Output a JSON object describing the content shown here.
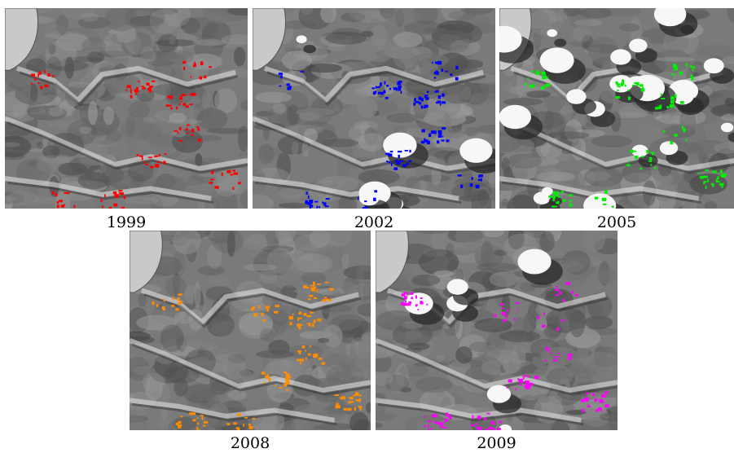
{
  "figure": {
    "panels": [
      {
        "year": "1999",
        "overlay_color": "#ff0000",
        "clouds": false
      },
      {
        "year": "2002",
        "overlay_color": "#0000ff",
        "clouds": true
      },
      {
        "year": "2005",
        "overlay_color": "#00ee00",
        "clouds": true
      },
      {
        "year": "2008",
        "overlay_color": "#ff8c00",
        "clouds": false
      },
      {
        "year": "2009",
        "overlay_color": "#ff00ff",
        "clouds": true
      }
    ]
  }
}
